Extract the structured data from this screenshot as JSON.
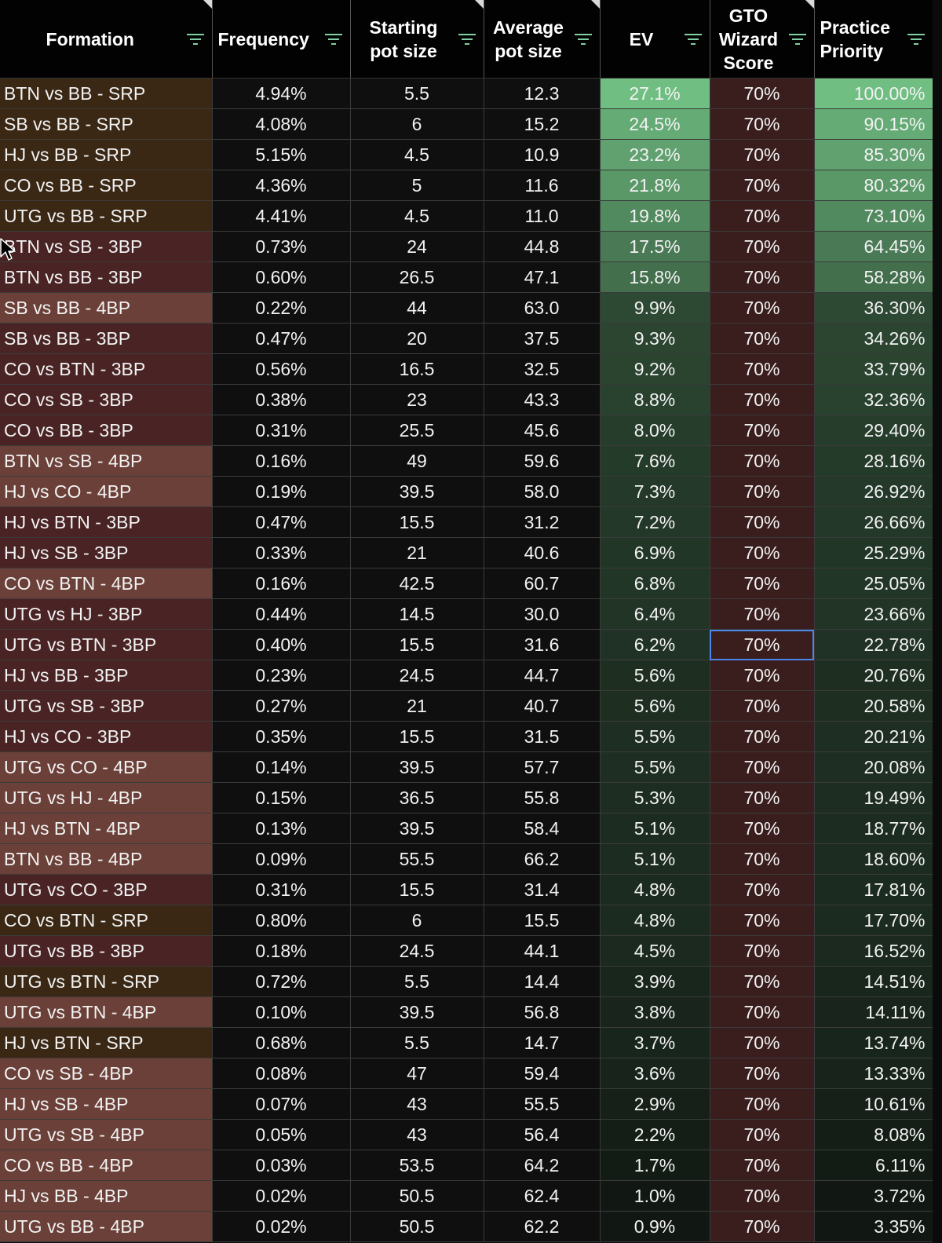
{
  "colors": {
    "header_bg": "#020202",
    "filter_icon": "#7fd0a3",
    "formation_srp": "#3a2815",
    "formation_3bp": "#4a2424",
    "formation_4bp": "#6b4038",
    "gto_cell": "#3a1e1e",
    "selection_outline": "#4c86e6"
  },
  "headers": {
    "formation": "Formation",
    "frequency": "Frequency",
    "starting_pot_line1": "Starting",
    "starting_pot_line2": "pot size",
    "average_pot_line1": "Average",
    "average_pot_line2": "pot size",
    "ev": "EV",
    "gto_line1": "GTO",
    "gto_line2": "Wizard",
    "gto_line3": "Score",
    "practice_line1": "Practice",
    "practice_line2": "Priority"
  },
  "selected_cell": {
    "row": 18,
    "column": "gto_score"
  },
  "rows": [
    {
      "formation": "BTN vs BB - SRP",
      "frequency": "4.94%",
      "starting_pot": "5.5",
      "avg_pot": "12.3",
      "ev": "27.1%",
      "gto_score": "70%",
      "practice_priority": "100.00%"
    },
    {
      "formation": "SB vs BB - SRP",
      "frequency": "4.08%",
      "starting_pot": "6",
      "avg_pot": "15.2",
      "ev": "24.5%",
      "gto_score": "70%",
      "practice_priority": "90.15%"
    },
    {
      "formation": "HJ vs BB - SRP",
      "frequency": "5.15%",
      "starting_pot": "4.5",
      "avg_pot": "10.9",
      "ev": "23.2%",
      "gto_score": "70%",
      "practice_priority": "85.30%"
    },
    {
      "formation": "CO vs BB - SRP",
      "frequency": "4.36%",
      "starting_pot": "5",
      "avg_pot": "11.6",
      "ev": "21.8%",
      "gto_score": "70%",
      "practice_priority": "80.32%"
    },
    {
      "formation": "UTG vs BB - SRP",
      "frequency": "4.41%",
      "starting_pot": "4.5",
      "avg_pot": "11.0",
      "ev": "19.8%",
      "gto_score": "70%",
      "practice_priority": "73.10%"
    },
    {
      "formation": "BTN vs SB - 3BP",
      "frequency": "0.73%",
      "starting_pot": "24",
      "avg_pot": "44.8",
      "ev": "17.5%",
      "gto_score": "70%",
      "practice_priority": "64.45%"
    },
    {
      "formation": "BTN vs BB - 3BP",
      "frequency": "0.60%",
      "starting_pot": "26.5",
      "avg_pot": "47.1",
      "ev": "15.8%",
      "gto_score": "70%",
      "practice_priority": "58.28%"
    },
    {
      "formation": "SB vs BB - 4BP",
      "frequency": "0.22%",
      "starting_pot": "44",
      "avg_pot": "63.0",
      "ev": "9.9%",
      "gto_score": "70%",
      "practice_priority": "36.30%"
    },
    {
      "formation": "SB vs BB - 3BP",
      "frequency": "0.47%",
      "starting_pot": "20",
      "avg_pot": "37.5",
      "ev": "9.3%",
      "gto_score": "70%",
      "practice_priority": "34.26%"
    },
    {
      "formation": "CO vs BTN - 3BP",
      "frequency": "0.56%",
      "starting_pot": "16.5",
      "avg_pot": "32.5",
      "ev": "9.2%",
      "gto_score": "70%",
      "practice_priority": "33.79%"
    },
    {
      "formation": "CO vs SB - 3BP",
      "frequency": "0.38%",
      "starting_pot": "23",
      "avg_pot": "43.3",
      "ev": "8.8%",
      "gto_score": "70%",
      "practice_priority": "32.36%"
    },
    {
      "formation": "CO vs BB - 3BP",
      "frequency": "0.31%",
      "starting_pot": "25.5",
      "avg_pot": "45.6",
      "ev": "8.0%",
      "gto_score": "70%",
      "practice_priority": "29.40%"
    },
    {
      "formation": "BTN vs SB - 4BP",
      "frequency": "0.16%",
      "starting_pot": "49",
      "avg_pot": "59.6",
      "ev": "7.6%",
      "gto_score": "70%",
      "practice_priority": "28.16%"
    },
    {
      "formation": "HJ vs CO - 4BP",
      "frequency": "0.19%",
      "starting_pot": "39.5",
      "avg_pot": "58.0",
      "ev": "7.3%",
      "gto_score": "70%",
      "practice_priority": "26.92%"
    },
    {
      "formation": "HJ vs BTN - 3BP",
      "frequency": "0.47%",
      "starting_pot": "15.5",
      "avg_pot": "31.2",
      "ev": "7.2%",
      "gto_score": "70%",
      "practice_priority": "26.66%"
    },
    {
      "formation": "HJ vs SB - 3BP",
      "frequency": "0.33%",
      "starting_pot": "21",
      "avg_pot": "40.6",
      "ev": "6.9%",
      "gto_score": "70%",
      "practice_priority": "25.29%"
    },
    {
      "formation": "CO vs BTN - 4BP",
      "frequency": "0.16%",
      "starting_pot": "42.5",
      "avg_pot": "60.7",
      "ev": "6.8%",
      "gto_score": "70%",
      "practice_priority": "25.05%"
    },
    {
      "formation": "UTG vs HJ - 3BP",
      "frequency": "0.44%",
      "starting_pot": "14.5",
      "avg_pot": "30.0",
      "ev": "6.4%",
      "gto_score": "70%",
      "practice_priority": "23.66%"
    },
    {
      "formation": "UTG vs BTN - 3BP",
      "frequency": "0.40%",
      "starting_pot": "15.5",
      "avg_pot": "31.6",
      "ev": "6.2%",
      "gto_score": "70%",
      "practice_priority": "22.78%"
    },
    {
      "formation": "HJ vs BB - 3BP",
      "frequency": "0.23%",
      "starting_pot": "24.5",
      "avg_pot": "44.7",
      "ev": "5.6%",
      "gto_score": "70%",
      "practice_priority": "20.76%"
    },
    {
      "formation": "UTG vs SB - 3BP",
      "frequency": "0.27%",
      "starting_pot": "21",
      "avg_pot": "40.7",
      "ev": "5.6%",
      "gto_score": "70%",
      "practice_priority": "20.58%"
    },
    {
      "formation": "HJ vs CO - 3BP",
      "frequency": "0.35%",
      "starting_pot": "15.5",
      "avg_pot": "31.5",
      "ev": "5.5%",
      "gto_score": "70%",
      "practice_priority": "20.21%"
    },
    {
      "formation": "UTG vs CO - 4BP",
      "frequency": "0.14%",
      "starting_pot": "39.5",
      "avg_pot": "57.7",
      "ev": "5.5%",
      "gto_score": "70%",
      "practice_priority": "20.08%"
    },
    {
      "formation": "UTG vs HJ - 4BP",
      "frequency": "0.15%",
      "starting_pot": "36.5",
      "avg_pot": "55.8",
      "ev": "5.3%",
      "gto_score": "70%",
      "practice_priority": "19.49%"
    },
    {
      "formation": "HJ vs BTN - 4BP",
      "frequency": "0.13%",
      "starting_pot": "39.5",
      "avg_pot": "58.4",
      "ev": "5.1%",
      "gto_score": "70%",
      "practice_priority": "18.77%"
    },
    {
      "formation": "BTN vs BB - 4BP",
      "frequency": "0.09%",
      "starting_pot": "55.5",
      "avg_pot": "66.2",
      "ev": "5.1%",
      "gto_score": "70%",
      "practice_priority": "18.60%"
    },
    {
      "formation": "UTG vs CO - 3BP",
      "frequency": "0.31%",
      "starting_pot": "15.5",
      "avg_pot": "31.4",
      "ev": "4.8%",
      "gto_score": "70%",
      "practice_priority": "17.81%"
    },
    {
      "formation": "CO vs BTN - SRP",
      "frequency": "0.80%",
      "starting_pot": "6",
      "avg_pot": "15.5",
      "ev": "4.8%",
      "gto_score": "70%",
      "practice_priority": "17.70%"
    },
    {
      "formation": "UTG vs BB - 3BP",
      "frequency": "0.18%",
      "starting_pot": "24.5",
      "avg_pot": "44.1",
      "ev": "4.5%",
      "gto_score": "70%",
      "practice_priority": "16.52%"
    },
    {
      "formation": "UTG vs BTN - SRP",
      "frequency": "0.72%",
      "starting_pot": "5.5",
      "avg_pot": "14.4",
      "ev": "3.9%",
      "gto_score": "70%",
      "practice_priority": "14.51%"
    },
    {
      "formation": "UTG vs BTN - 4BP",
      "frequency": "0.10%",
      "starting_pot": "39.5",
      "avg_pot": "56.8",
      "ev": "3.8%",
      "gto_score": "70%",
      "practice_priority": "14.11%"
    },
    {
      "formation": "HJ vs BTN - SRP",
      "frequency": "0.68%",
      "starting_pot": "5.5",
      "avg_pot": "14.7",
      "ev": "3.7%",
      "gto_score": "70%",
      "practice_priority": "13.74%"
    },
    {
      "formation": "CO vs SB - 4BP",
      "frequency": "0.08%",
      "starting_pot": "47",
      "avg_pot": "59.4",
      "ev": "3.6%",
      "gto_score": "70%",
      "practice_priority": "13.33%"
    },
    {
      "formation": "HJ vs SB - 4BP",
      "frequency": "0.07%",
      "starting_pot": "43",
      "avg_pot": "55.5",
      "ev": "2.9%",
      "gto_score": "70%",
      "practice_priority": "10.61%"
    },
    {
      "formation": "UTG vs SB - 4BP",
      "frequency": "0.05%",
      "starting_pot": "43",
      "avg_pot": "56.4",
      "ev": "2.2%",
      "gto_score": "70%",
      "practice_priority": "8.08%"
    },
    {
      "formation": "CO vs BB - 4BP",
      "frequency": "0.03%",
      "starting_pot": "53.5",
      "avg_pot": "64.2",
      "ev": "1.7%",
      "gto_score": "70%",
      "practice_priority": "6.11%"
    },
    {
      "formation": "HJ vs BB - 4BP",
      "frequency": "0.02%",
      "starting_pot": "50.5",
      "avg_pot": "62.4",
      "ev": "1.0%",
      "gto_score": "70%",
      "practice_priority": "3.72%"
    },
    {
      "formation": "UTG vs BB - 4BP",
      "frequency": "0.02%",
      "starting_pot": "50.5",
      "avg_pot": "62.2",
      "ev": "0.9%",
      "gto_score": "70%",
      "practice_priority": "3.35%"
    }
  ]
}
